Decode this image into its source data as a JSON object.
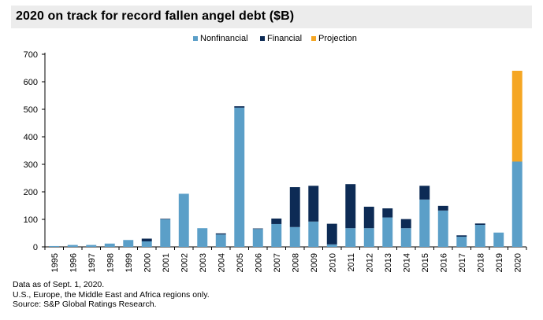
{
  "chart_data": {
    "type": "bar",
    "stacked": true,
    "title": "2020 on track for record fallen angel debt ($B)",
    "categories": [
      "1995",
      "1996",
      "1997",
      "1998",
      "1999",
      "2000",
      "2001",
      "2002",
      "2003",
      "2004",
      "2005",
      "2006",
      "2007",
      "2008",
      "2009",
      "2010",
      "2011",
      "2012",
      "2013",
      "2014",
      "2015",
      "2016",
      "2017",
      "2018",
      "2019",
      "2020"
    ],
    "series": [
      {
        "name": "Nonfinancial",
        "color": "#5b9fc8",
        "values": [
          3,
          7,
          7,
          12,
          25,
          20,
          100,
          193,
          68,
          45,
          506,
          65,
          83,
          72,
          92,
          9,
          68,
          68,
          107,
          68,
          172,
          132,
          37,
          80,
          52,
          310
        ]
      },
      {
        "name": "Financial",
        "color": "#0d2b55",
        "values": [
          0,
          0,
          0,
          0,
          0,
          10,
          2,
          0,
          0,
          4,
          5,
          2,
          20,
          145,
          130,
          75,
          160,
          78,
          33,
          33,
          50,
          17,
          5,
          5,
          0,
          0
        ]
      },
      {
        "name": "Projection",
        "color": "#f5a623",
        "values": [
          0,
          0,
          0,
          0,
          0,
          0,
          0,
          0,
          0,
          0,
          0,
          0,
          0,
          0,
          0,
          0,
          0,
          0,
          0,
          0,
          0,
          0,
          0,
          0,
          0,
          330
        ]
      }
    ],
    "ylim": [
      0,
      700
    ],
    "yticks": [
      0,
      100,
      200,
      300,
      400,
      500,
      600,
      700
    ],
    "xlabel": "",
    "ylabel": "",
    "grid": false,
    "legend": "top-center"
  },
  "notes": [
    "Data as of Sept. 1, 2020.",
    "U.S., Europe, the Middle East and Africa regions only.",
    "Source: S&P Global Ratings Research."
  ]
}
